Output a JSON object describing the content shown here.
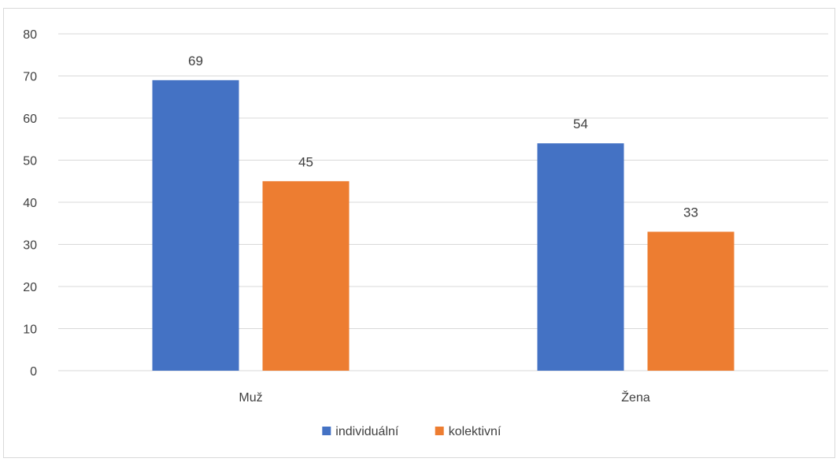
{
  "chart_data": {
    "type": "bar",
    "title": "",
    "xlabel": "",
    "ylabel": "",
    "categories": [
      "Muž",
      "Žena"
    ],
    "series": [
      {
        "name": "individuální",
        "values": [
          69,
          54
        ],
        "color": "#4472c4"
      },
      {
        "name": "kolektivní",
        "values": [
          45,
          33
        ],
        "color": "#ed7d31"
      }
    ],
    "ylim": [
      0,
      80
    ],
    "yticks": [
      0,
      10,
      20,
      30,
      40,
      50,
      60,
      70,
      80
    ],
    "grid": true,
    "data_labels": true,
    "legend": "bottom-center"
  },
  "colors": {
    "gridline": "#d9d9d9",
    "text": "#404040",
    "frame": "#d9d9d9"
  }
}
